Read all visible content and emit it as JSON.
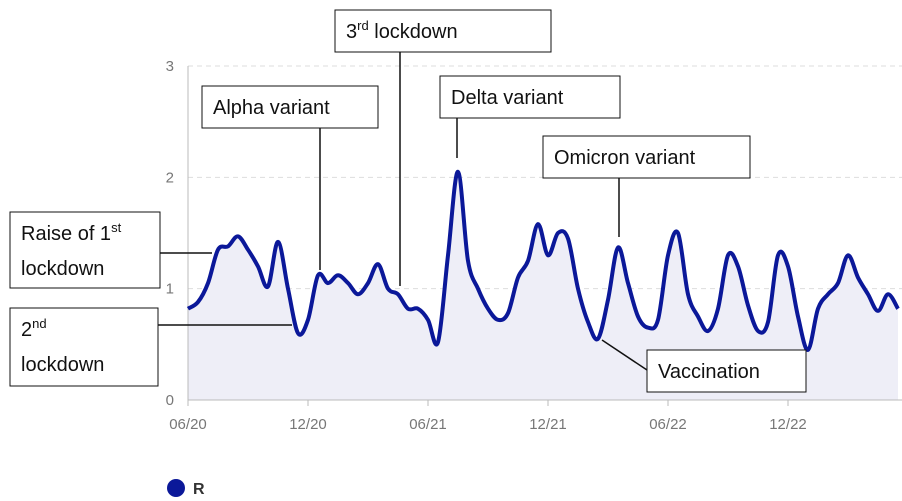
{
  "chart_data": {
    "type": "line",
    "categories": [
      "06/20",
      null,
      null,
      null,
      null,
      null,
      null,
      null,
      null,
      null,
      null,
      null,
      "12/20",
      null,
      null,
      null,
      null,
      null,
      null,
      null,
      null,
      null,
      null,
      null,
      "06/21",
      null,
      null,
      null,
      null,
      null,
      null,
      null,
      null,
      null,
      null,
      null,
      "12/21",
      null,
      null,
      null,
      null,
      null,
      null,
      null,
      null,
      null,
      null,
      null,
      "06/22",
      null,
      null,
      null,
      null,
      null,
      null,
      null,
      null,
      null,
      null,
      null,
      "12/22",
      null,
      null,
      null,
      null,
      null,
      null,
      null,
      null,
      null,
      null,
      null
    ],
    "series": [
      {
        "name": "R",
        "color": "#0b1899",
        "values": [
          0.82,
          0.88,
          1.05,
          1.35,
          1.38,
          1.47,
          1.35,
          1.2,
          1.02,
          1.42,
          1.0,
          0.6,
          0.72,
          1.12,
          1.05,
          1.12,
          1.05,
          0.95,
          1.05,
          1.22,
          1.0,
          0.95,
          0.82,
          0.82,
          0.72,
          0.52,
          1.3,
          2.05,
          1.25,
          1.0,
          0.82,
          0.72,
          0.78,
          1.1,
          1.25,
          1.58,
          1.3,
          1.5,
          1.45,
          1.0,
          0.7,
          0.55,
          0.9,
          1.37,
          1.05,
          0.75,
          0.65,
          0.72,
          1.3,
          1.5,
          0.95,
          0.75,
          0.62,
          0.82,
          1.3,
          1.2,
          0.85,
          0.62,
          0.7,
          1.3,
          1.2,
          0.75,
          0.45,
          0.82,
          0.95,
          1.05,
          1.3,
          1.1,
          0.95,
          0.8,
          0.95,
          0.82
        ]
      }
    ],
    "area_color": "#eeeef7",
    "ylim": [
      0,
      3
    ],
    "yticks": [
      0,
      1,
      2,
      3
    ],
    "grid": true,
    "legend": "bottom-left",
    "annotations": [
      {
        "lines": [
          [
            "Raise of 1",
            {
              "text": "st",
              "sup": true
            }
          ],
          [
            "lockdown"
          ]
        ]
      },
      {
        "lines": [
          [
            "2",
            {
              "text": "nd",
              "sup": true
            }
          ],
          [
            "lockdown"
          ]
        ]
      },
      {
        "lines": [
          [
            "Alpha variant"
          ]
        ]
      },
      {
        "lines": [
          [
            "3",
            {
              "text": "rd",
              "sup": true
            },
            " lockdown"
          ]
        ]
      },
      {
        "lines": [
          [
            "Delta variant"
          ]
        ]
      },
      {
        "lines": [
          [
            "Omicron variant"
          ]
        ]
      },
      {
        "lines": [
          [
            "Vaccination"
          ]
        ]
      }
    ]
  }
}
